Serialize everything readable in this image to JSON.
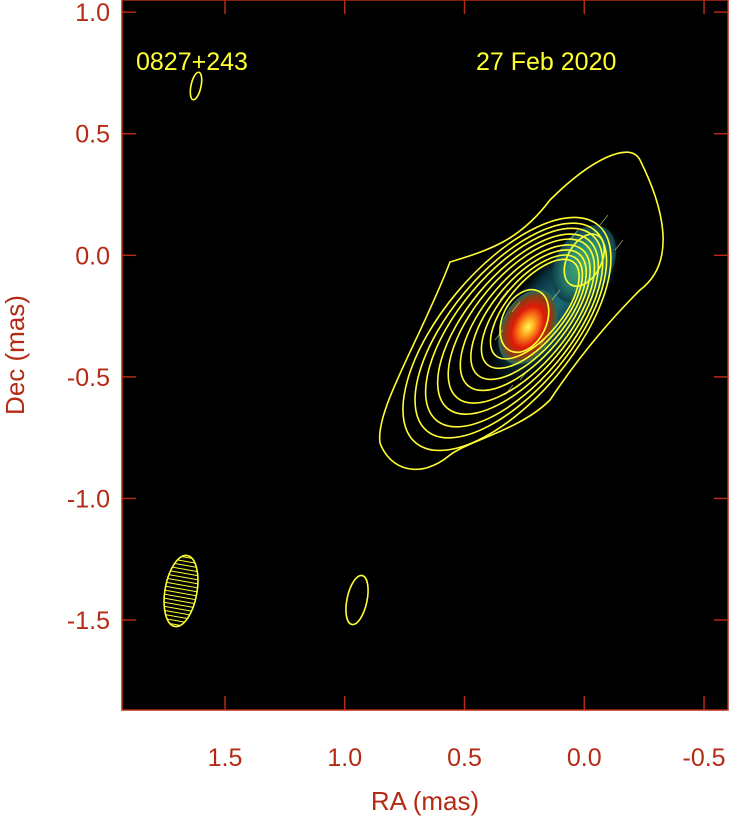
{
  "chart_data": {
    "type": "contour-map",
    "source_label": "0827+243",
    "date_label": "27 Feb 2020",
    "xlabel": "RA (mas)",
    "ylabel": "Dec (mas)",
    "xlim": [
      1.93,
      -0.6
    ],
    "ylim": [
      -1.87,
      1.05
    ],
    "x_ticks": [
      1.5,
      1.0,
      0.5,
      0.0,
      -0.5
    ],
    "x_tick_labels": [
      "1.5",
      "1.0",
      "0.5",
      "0.0",
      "-0.5"
    ],
    "y_ticks": [
      1.0,
      0.5,
      0.0,
      -0.5,
      -1.0,
      -1.5
    ],
    "y_tick_labels": [
      "1.0",
      "0.5",
      "0.0",
      "-0.5",
      "-1.0",
      "-1.5"
    ],
    "contour_color": "#ffff33",
    "background_color": "#000000",
    "axis_color": "#b52a14",
    "intensity_peaks": [
      {
        "name": "core",
        "x": 0.25,
        "y": -0.27,
        "color": "#e01a0a"
      },
      {
        "name": "jet-component",
        "x": 0.0,
        "y": -0.02,
        "color": "#2d8a6e"
      }
    ],
    "beam": {
      "x": 1.71,
      "y": -1.39,
      "major_axis": 0.31,
      "minor_axis": 0.13,
      "position_angle_deg": 10
    },
    "isolated_contours": [
      {
        "x": 1.66,
        "y": 0.76,
        "major_axis": 0.13,
        "minor_axis": 0.04,
        "position_angle_deg": 12
      },
      {
        "x": 0.98,
        "y": -1.42,
        "major_axis": 0.22,
        "minor_axis": 0.09,
        "position_angle_deg": 12
      }
    ],
    "contour_offsets": [
      0.8,
      0.72,
      0.65,
      0.57,
      0.5,
      0.42,
      0.35,
      0.28,
      0.22
    ]
  }
}
